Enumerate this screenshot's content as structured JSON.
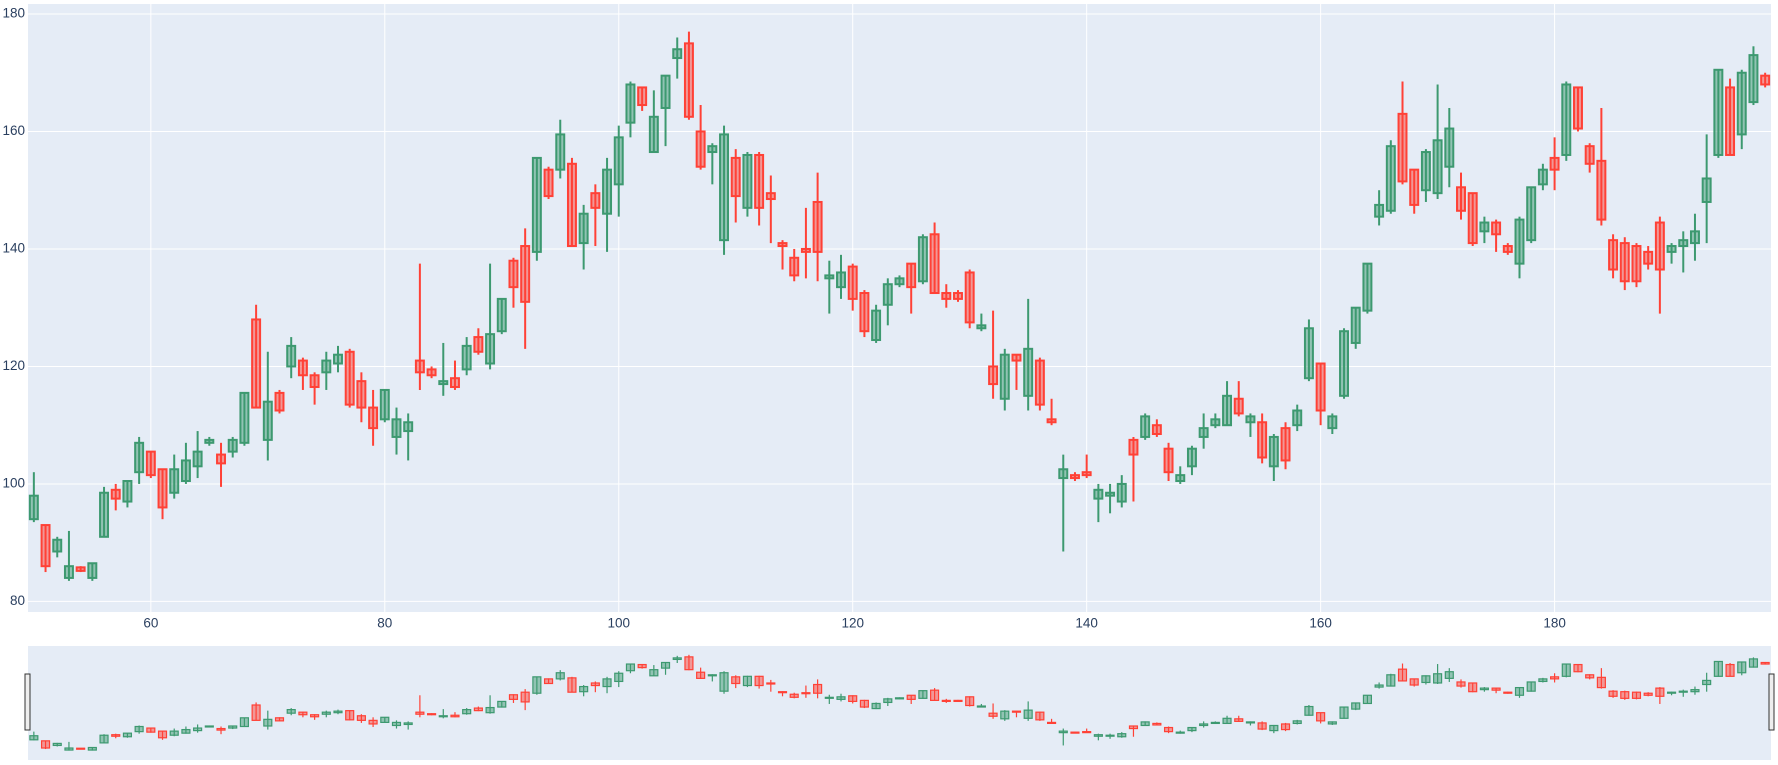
{
  "chart_data": {
    "type": "candlestick",
    "x": [
      50,
      51,
      52,
      53,
      54,
      55,
      56,
      57,
      58,
      59,
      60,
      61,
      62,
      63,
      64,
      65,
      66,
      67,
      68,
      69,
      70,
      71,
      72,
      73,
      74,
      75,
      76,
      77,
      78,
      79,
      80,
      81,
      82,
      83,
      84,
      85,
      86,
      87,
      88,
      89,
      90,
      91,
      92,
      93,
      94,
      95,
      96,
      97,
      98,
      99,
      100,
      101,
      102,
      103,
      104,
      105,
      106,
      107,
      108,
      109,
      110,
      111,
      112,
      113,
      114,
      115,
      116,
      117,
      118,
      119,
      120,
      121,
      122,
      123,
      124,
      125,
      126,
      127,
      128,
      129,
      130,
      131,
      132,
      133,
      134,
      135,
      136,
      137,
      138,
      139,
      140,
      141,
      142,
      143,
      144,
      145,
      146,
      147,
      148,
      149,
      150,
      151,
      152,
      153,
      154,
      155,
      156,
      157,
      158,
      159,
      160,
      161,
      162,
      163,
      164,
      165,
      166,
      167,
      168,
      169,
      170,
      171,
      172,
      173,
      174,
      175,
      176,
      177,
      178,
      179,
      180,
      181,
      182,
      183,
      184,
      185,
      186,
      187,
      188,
      189,
      190,
      191,
      192,
      193,
      194,
      195,
      196,
      197,
      198
    ],
    "open": [
      94,
      93,
      88.5,
      84,
      85.8,
      84,
      91,
      99,
      97,
      102,
      105.5,
      102.5,
      98.5,
      100.5,
      103,
      107,
      105,
      105.5,
      107,
      128,
      107.5,
      115.5,
      120,
      121,
      118.5,
      119,
      120.5,
      122.5,
      117.5,
      113,
      111,
      108,
      109,
      121,
      119.5,
      117,
      118,
      119.5,
      125,
      120.5,
      126,
      138,
      140.5,
      139.5,
      153.5,
      153.5,
      154.5,
      141,
      149.5,
      146,
      151,
      161.5,
      167.5,
      156.5,
      164,
      172.5,
      175,
      160,
      156.5,
      141.5,
      155.5,
      147,
      156,
      149.5,
      141,
      138.5,
      140,
      148,
      135,
      133.5,
      137,
      132.5,
      124.5,
      130.5,
      134,
      137.5,
      134.5,
      142.5,
      132.5,
      132.5,
      136,
      126.5,
      120,
      114.5,
      122,
      115,
      121,
      111,
      101,
      101.5,
      102,
      97.5,
      98,
      97,
      107.5,
      108,
      110,
      106,
      100.5,
      103,
      108,
      110,
      110,
      114.5,
      110.5,
      110.5,
      103,
      109.5,
      110,
      118,
      120.5,
      109.5,
      115,
      124,
      129.5,
      145.5,
      146.5,
      163,
      153.5,
      150,
      149.5,
      154,
      150.5,
      149.5,
      143,
      144.5,
      140.5,
      137.5,
      141.5,
      151,
      155.5,
      156,
      167.5,
      157.5,
      155,
      141.5,
      141,
      140.5,
      139.5,
      144.5,
      139.5,
      140.5,
      141,
      148,
      156,
      167.5,
      159.5,
      165,
      169.5
    ],
    "high": [
      102,
      93,
      91,
      92,
      86,
      86.5,
      99.5,
      100,
      100.5,
      108,
      105.5,
      102.5,
      105,
      107,
      109,
      108,
      107,
      108,
      115.5,
      130.5,
      122.5,
      116,
      125,
      121.5,
      119,
      122.5,
      123.5,
      123,
      119,
      116,
      116,
      113,
      112,
      137.5,
      120,
      124,
      121,
      125,
      126.5,
      137.5,
      131.5,
      138.5,
      143.5,
      155.5,
      154,
      162,
      155.5,
      147.5,
      151,
      155.5,
      161,
      168.5,
      167.5,
      167,
      169.5,
      176,
      177,
      164.5,
      158,
      161,
      157,
      156.5,
      156.5,
      152.5,
      141.5,
      140,
      147,
      153,
      138,
      139,
      137.5,
      133,
      130.5,
      135,
      135.5,
      137.5,
      142.5,
      144.5,
      134,
      133,
      136.5,
      129,
      129.5,
      123,
      122,
      131.5,
      121.5,
      114.5,
      105,
      102,
      105,
      100,
      100,
      101.5,
      108,
      112,
      111,
      107,
      103,
      106.5,
      112,
      112,
      117.5,
      117.5,
      112,
      112,
      108.5,
      110.5,
      113.5,
      128,
      120.5,
      112,
      126.5,
      130,
      137.5,
      150,
      158.5,
      168.5,
      153.5,
      157,
      168,
      164,
      153,
      149.5,
      145.5,
      145,
      141,
      145.5,
      150.5,
      154.5,
      159,
      168.5,
      167.5,
      158,
      164,
      142.5,
      142,
      141,
      140.5,
      145.5,
      141,
      143,
      146,
      159.5,
      170.5,
      169,
      170.5,
      174.5,
      170
    ],
    "low": [
      93.5,
      85,
      87.5,
      83.5,
      85,
      83.5,
      91,
      95.5,
      96,
      100,
      101,
      94,
      97.5,
      100,
      101,
      106.5,
      99.5,
      104.5,
      106.5,
      113,
      104,
      112,
      118,
      116,
      113.5,
      116,
      119,
      113,
      110.5,
      106.5,
      110.5,
      105,
      104,
      116,
      118,
      115,
      116,
      118.5,
      122,
      119.5,
      125.5,
      130,
      123,
      138,
      148.5,
      152,
      140.5,
      136.5,
      140.5,
      139.5,
      145.5,
      159,
      163.5,
      156.5,
      157.5,
      169,
      162,
      153.5,
      151,
      139,
      144.5,
      145.5,
      144,
      141,
      136.5,
      134.5,
      135,
      134.5,
      129,
      131.5,
      129.5,
      125,
      124,
      127,
      133.5,
      129,
      134,
      132.5,
      130,
      131,
      126.5,
      126,
      114.5,
      112.5,
      116,
      112.5,
      112.5,
      110,
      88.5,
      100.5,
      101,
      93.5,
      95,
      96,
      97,
      107.5,
      108,
      100.5,
      100,
      101.5,
      106,
      109.5,
      110,
      111.5,
      108,
      103.5,
      100.5,
      102.5,
      109,
      117.5,
      110,
      108.5,
      114.5,
      123,
      129,
      144,
      146,
      151,
      146,
      148,
      148.5,
      150.5,
      145,
      140.5,
      141,
      139.5,
      139,
      135,
      141,
      150,
      150,
      155,
      160,
      153,
      144,
      135,
      133,
      133.5,
      136.5,
      129,
      137.5,
      136,
      138,
      141,
      155.5,
      156,
      157,
      164.5,
      167.5
    ],
    "close": [
      98,
      86,
      90.5,
      86,
      85.2,
      86.5,
      98.5,
      97.5,
      100.5,
      107,
      101.5,
      96,
      102.5,
      104,
      105.5,
      107.5,
      103.5,
      107.5,
      115.5,
      113,
      114,
      112.5,
      123.5,
      118.5,
      116.5,
      121,
      122,
      113.5,
      113,
      109.5,
      116,
      111,
      110.5,
      119,
      118.5,
      117.5,
      116.5,
      123.5,
      122.5,
      125.5,
      131.5,
      133.5,
      131,
      155.5,
      149,
      159.5,
      140.5,
      146,
      147,
      153.5,
      159,
      168,
      164.5,
      162.5,
      169.5,
      174,
      162.5,
      154,
      157.5,
      159.5,
      149,
      156,
      147,
      148.5,
      140.5,
      135.5,
      139.5,
      139.5,
      135.5,
      136,
      131.5,
      126,
      129.5,
      134,
      135,
      133.5,
      142,
      132.5,
      131.5,
      131.5,
      127.5,
      127,
      117,
      122,
      121,
      123,
      113.5,
      110.5,
      102.5,
      101,
      101.5,
      99,
      98.5,
      100,
      105,
      111.5,
      108.5,
      102,
      101.5,
      106,
      109.5,
      111,
      115,
      112,
      111.5,
      104.5,
      108,
      104,
      112.5,
      126.5,
      112.5,
      111.5,
      126,
      130,
      137.5,
      147.5,
      157.5,
      151.5,
      147.5,
      156.5,
      158.5,
      160.5,
      146.5,
      141,
      144.5,
      142.5,
      139.5,
      145,
      150.5,
      153.5,
      153.5,
      168,
      160.5,
      154.5,
      145,
      136.5,
      134.5,
      134.5,
      137.5,
      136.5,
      140.5,
      141.5,
      143,
      152,
      170.5,
      156,
      170,
      173,
      168
    ],
    "increasing_color": "#3d9970",
    "decreasing_color": "#ff4136",
    "xlim": [
      49.5,
      198.5
    ],
    "ylim": [
      78.2,
      181.7
    ],
    "xticks": [
      60,
      80,
      100,
      120,
      140,
      160,
      180
    ],
    "yticks": [
      80,
      100,
      120,
      140,
      160,
      180
    ],
    "grid": true,
    "rangeslider": true
  }
}
